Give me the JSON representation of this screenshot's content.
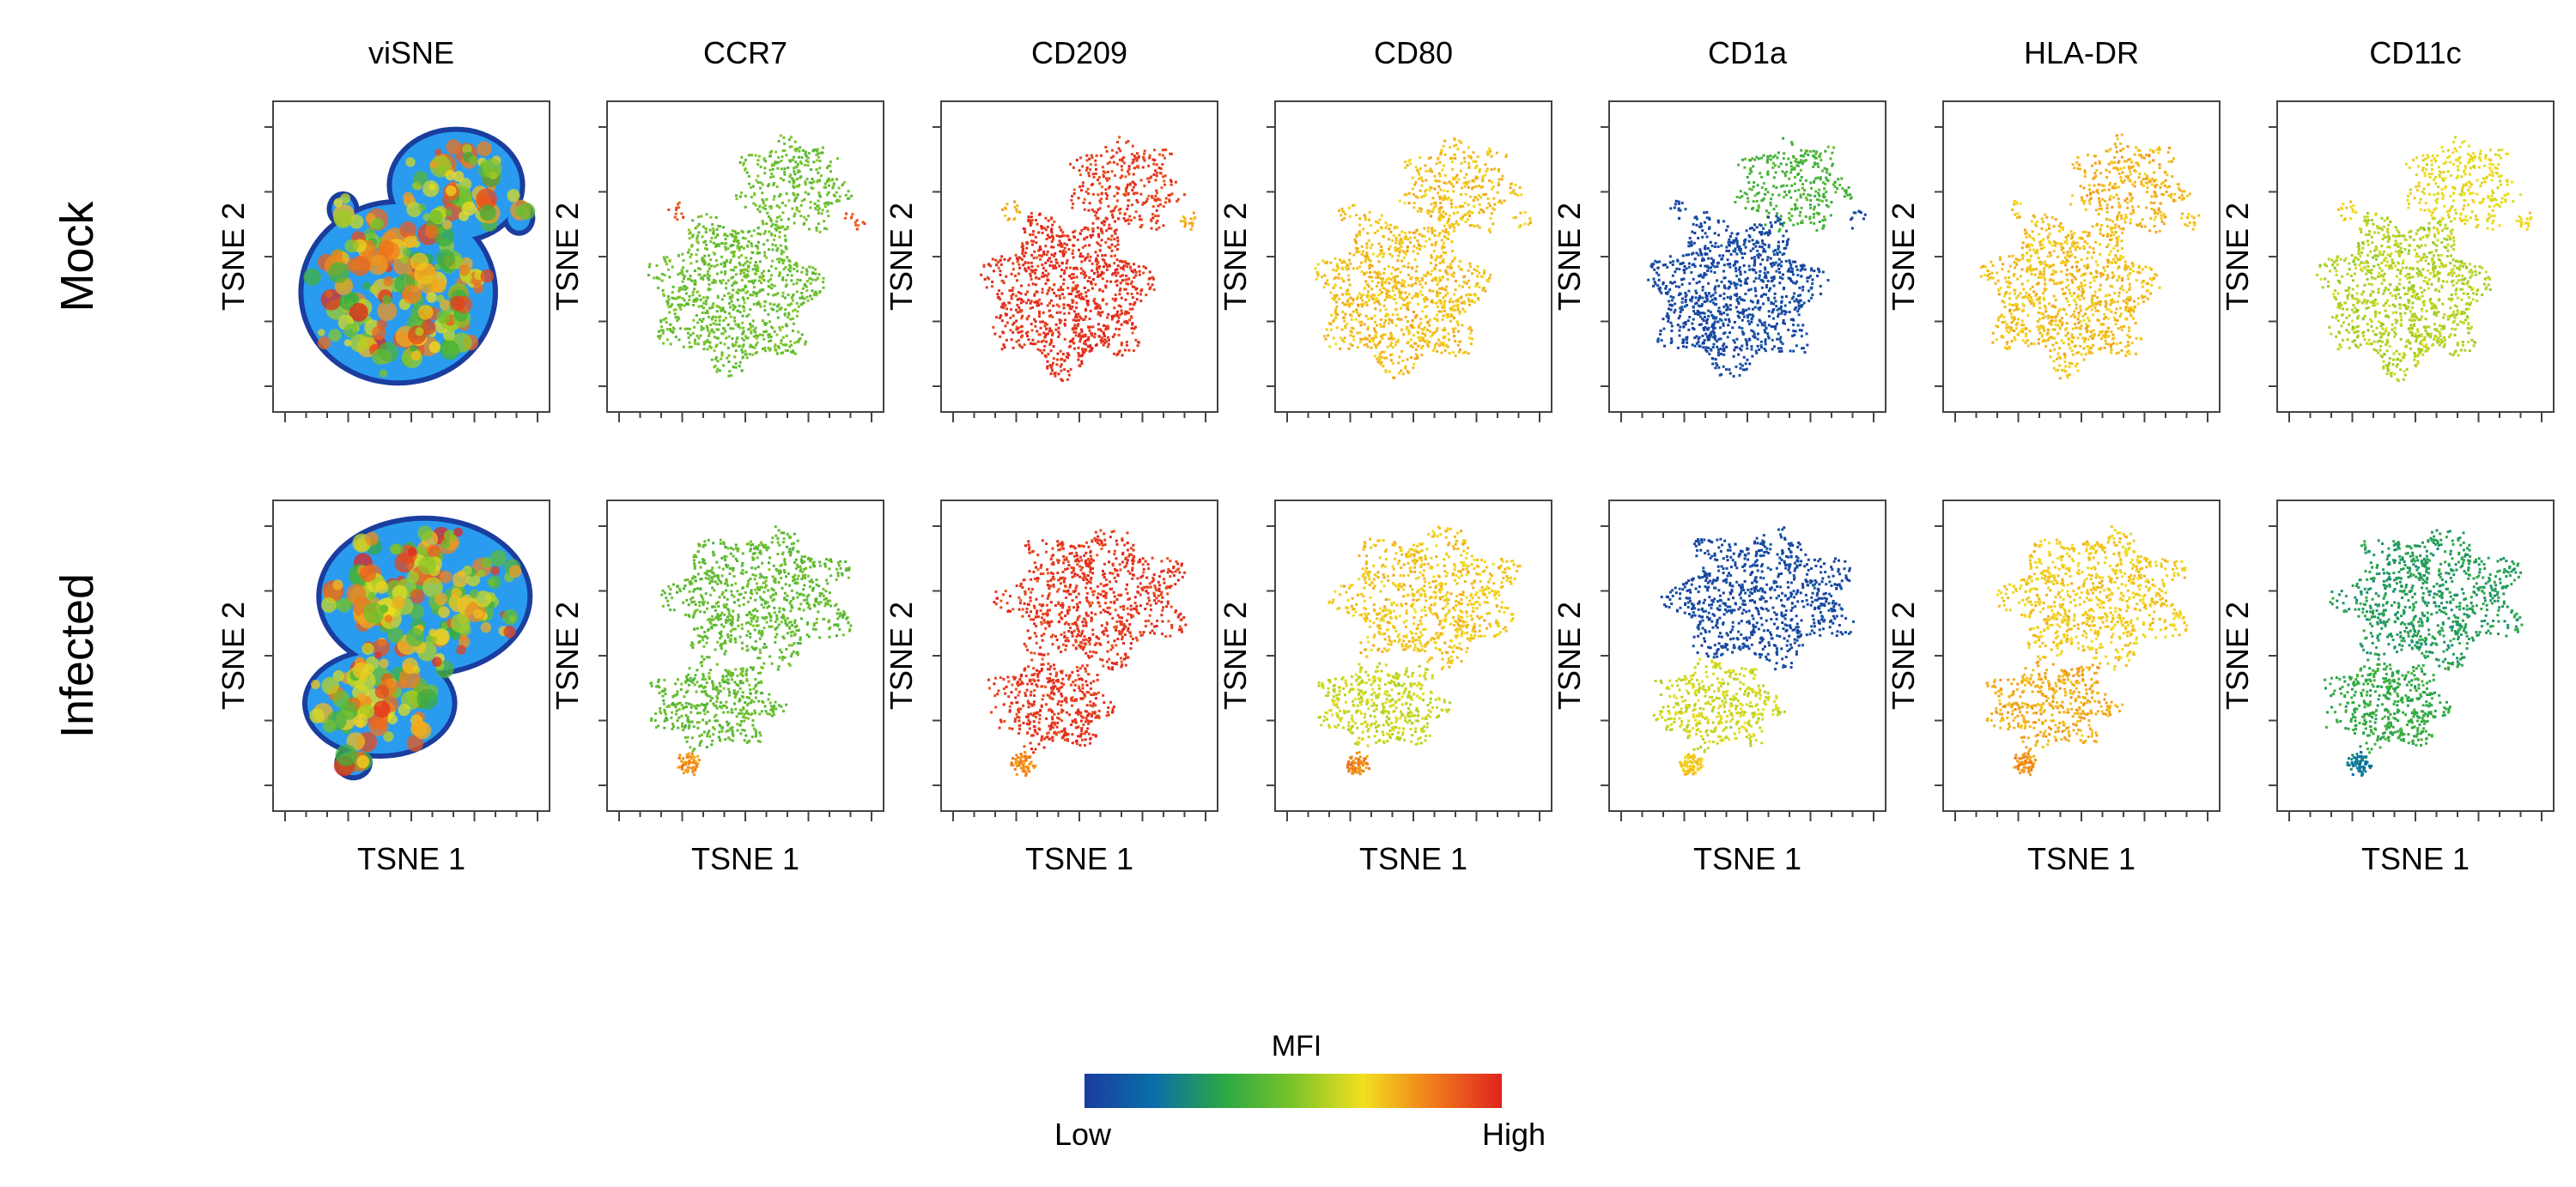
{
  "chart_data": {
    "type": "scatter",
    "description_kind": "viSNE / tSNE marker-expression panel grid",
    "columns": [
      "viSNE",
      "CCR7",
      "CD209",
      "CD80",
      "CD1a",
      "HLA-DR",
      "CD11c"
    ],
    "rows": [
      "Mock",
      "Infected"
    ],
    "xlabel": "TSNE 1",
    "ylabel": "TSNE 2",
    "colorbar": {
      "title": "MFI",
      "low_label": "Low",
      "high_label": "High",
      "colors": [
        "#1a3d9e",
        "#0a6fa8",
        "#2aa845",
        "#7cc42a",
        "#f2e01e",
        "#f07c1c",
        "#e0231e"
      ]
    },
    "expression_level_0_to_1": {
      "Mock": {
        "CCR7": 0.42,
        "CD209": 0.95,
        "CD80": 0.7,
        "CD1a": 0.04,
        "HLA-DR": 0.72,
        "CD11c": 0.58
      },
      "Infected": {
        "CCR7": 0.45,
        "CD209": 0.96,
        "CD80": 0.66,
        "CD1a": 0.1,
        "HLA-DR": 0.7,
        "CD11c": 0.3
      }
    },
    "panels": [
      {
        "row": "Mock",
        "column": "viSNE",
        "kind": "density"
      },
      {
        "row": "Mock",
        "column": "CCR7",
        "kind": "expression"
      },
      {
        "row": "Mock",
        "column": "CD209",
        "kind": "expression"
      },
      {
        "row": "Mock",
        "column": "CD80",
        "kind": "expression"
      },
      {
        "row": "Mock",
        "column": "CD1a",
        "kind": "expression"
      },
      {
        "row": "Mock",
        "column": "HLA-DR",
        "kind": "expression"
      },
      {
        "row": "Mock",
        "column": "CD11c",
        "kind": "expression"
      },
      {
        "row": "Infected",
        "column": "viSNE",
        "kind": "density"
      },
      {
        "row": "Infected",
        "column": "CCR7",
        "kind": "expression"
      },
      {
        "row": "Infected",
        "column": "CD209",
        "kind": "expression"
      },
      {
        "row": "Infected",
        "column": "CD80",
        "kind": "expression"
      },
      {
        "row": "Infected",
        "column": "CD1a",
        "kind": "expression"
      },
      {
        "row": "Infected",
        "column": "HLA-DR",
        "kind": "expression"
      },
      {
        "row": "Infected",
        "column": "CD11c",
        "kind": "expression"
      }
    ]
  }
}
